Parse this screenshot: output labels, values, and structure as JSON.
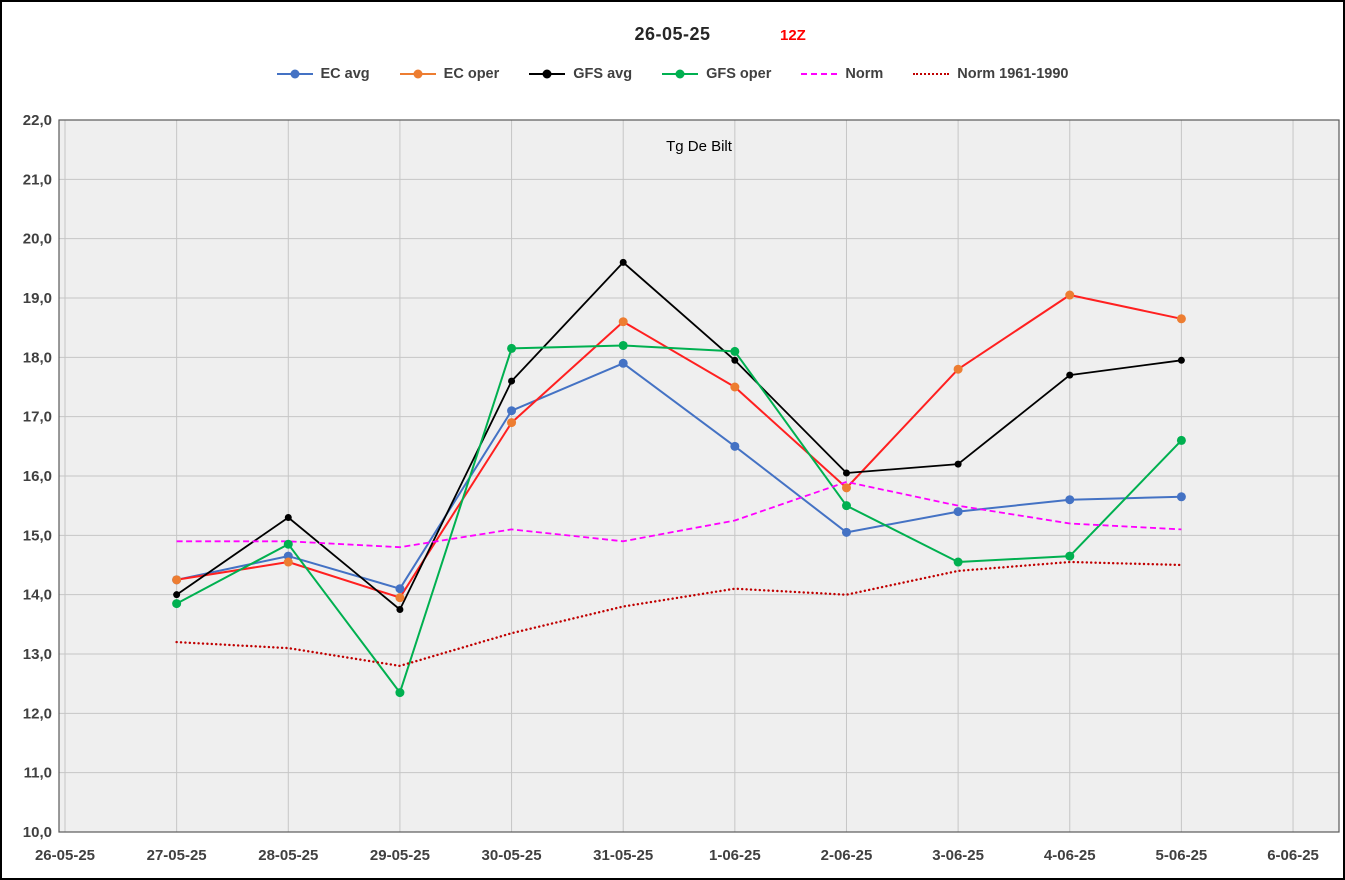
{
  "title": {
    "date": "26-05-25",
    "run": "12Z"
  },
  "plot_label": "Tg De Bilt",
  "colors": {
    "plot_bg": "#efefef",
    "grid": "#c6c6c6",
    "plot_border": "#595959",
    "axis_text": "#404040",
    "title_text": "#262626",
    "run_text": "#ff0000",
    "frame_border": "#000000"
  },
  "chart_data": {
    "type": "line",
    "title": "26-05-25 12Z",
    "annotation": "Tg De Bilt",
    "xlabel": "",
    "ylabel": "",
    "ylim": [
      10,
      22
    ],
    "ytick_step": 1,
    "ytick_labels": [
      "22,0",
      "21,0",
      "20,0",
      "19,0",
      "18,0",
      "17,0",
      "16,0",
      "15,0",
      "14,0",
      "13,0",
      "12,0",
      "11,0",
      "10,0"
    ],
    "grid": true,
    "legend_position": "top",
    "categories": [
      "26-05-25",
      "27-05-25",
      "28-05-25",
      "29-05-25",
      "30-05-25",
      "31-05-25",
      "1-06-25",
      "2-06-25",
      "3-06-25",
      "4-06-25",
      "5-06-25",
      "6-06-25"
    ],
    "x_start_index": 1,
    "series": [
      {
        "name": "EC avg",
        "color": "#4472c4",
        "marker_color": "#4472c4",
        "style": "solid",
        "marker": true,
        "marker_r": 4.5,
        "width": 2,
        "values": [
          14.25,
          14.65,
          14.1,
          17.1,
          17.9,
          16.5,
          15.05,
          15.4,
          15.6,
          15.65
        ]
      },
      {
        "name": "EC oper",
        "color": "#ff2020",
        "marker_color": "#ed7d31",
        "style": "solid",
        "marker": true,
        "marker_r": 4.5,
        "width": 2,
        "values": [
          14.25,
          14.55,
          13.95,
          16.9,
          18.6,
          17.5,
          15.8,
          17.8,
          19.05,
          18.65
        ]
      },
      {
        "name": "GFS avg",
        "color": "#000000",
        "marker_color": "#000000",
        "style": "solid",
        "marker": true,
        "marker_r": 3.5,
        "width": 1.8,
        "values": [
          14.0,
          15.3,
          13.75,
          17.6,
          19.6,
          17.95,
          16.05,
          16.2,
          17.7,
          17.95
        ]
      },
      {
        "name": "GFS oper",
        "color": "#00b050",
        "marker_color": "#00b050",
        "style": "solid",
        "marker": true,
        "marker_r": 4.5,
        "width": 2,
        "values": [
          13.85,
          14.85,
          12.35,
          18.15,
          18.2,
          18.1,
          15.5,
          14.55,
          14.65,
          16.6
        ]
      },
      {
        "name": "Norm",
        "color": "#ff00ff",
        "marker_color": "#ff00ff",
        "style": "dashed",
        "marker": false,
        "marker_r": 0,
        "width": 1.8,
        "values": [
          14.9,
          14.9,
          14.8,
          15.1,
          14.9,
          15.25,
          15.9,
          15.5,
          15.2,
          15.1
        ]
      },
      {
        "name": "Norm 1961-1990",
        "color": "#c00000",
        "marker_color": "#c00000",
        "style": "dotted",
        "marker": false,
        "marker_r": 0,
        "width": 2.4,
        "values": [
          13.2,
          13.1,
          12.8,
          13.35,
          13.8,
          14.1,
          14.0,
          14.4,
          14.55,
          14.5
        ]
      }
    ]
  }
}
